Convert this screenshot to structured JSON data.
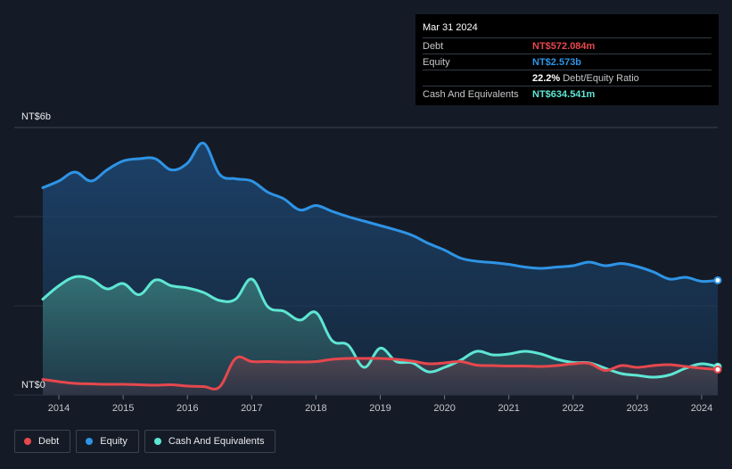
{
  "tooltip": {
    "date": "Mar 31 2024",
    "rows": [
      {
        "label": "Debt",
        "value": "NT$572.084m",
        "color": "#e5484d"
      },
      {
        "label": "Equity",
        "value": "NT$2.573b",
        "color": "#2e94e6"
      },
      {
        "label": "",
        "value": "22.2%",
        "suffix": "Debt/Equity Ratio",
        "color": "#ffffff"
      },
      {
        "label": "Cash And Equivalents",
        "value": "NT$634.541m",
        "color": "#5ee6d3"
      }
    ]
  },
  "legend": [
    {
      "label": "Debt",
      "color": "#e5484d"
    },
    {
      "label": "Equity",
      "color": "#2e94e6"
    },
    {
      "label": "Cash And Equivalents",
      "color": "#5ee6d3"
    }
  ],
  "chart_data": {
    "type": "area",
    "title": "",
    "xlabel": "",
    "ylabel": "",
    "y_unit": "NT$ billions",
    "ylim": [
      0,
      6
    ],
    "xlim": [
      2013.75,
      2024.25
    ],
    "grid": true,
    "y_tick_labels": [
      {
        "value": 6,
        "label": "NT$6b"
      },
      {
        "value": 0,
        "label": "NT$0"
      }
    ],
    "x_ticks": [
      {
        "value": 2014,
        "label": "2014"
      },
      {
        "value": 2015,
        "label": "2015"
      },
      {
        "value": 2016,
        "label": "2016"
      },
      {
        "value": 2017,
        "label": "2017"
      },
      {
        "value": 2018,
        "label": "2018"
      },
      {
        "value": 2019,
        "label": "2019"
      },
      {
        "value": 2020,
        "label": "2020"
      },
      {
        "value": 2021,
        "label": "2021"
      },
      {
        "value": 2022,
        "label": "2022"
      },
      {
        "value": 2023,
        "label": "2023"
      },
      {
        "value": 2024,
        "label": "2024"
      }
    ],
    "series": [
      {
        "name": "Equity",
        "color": "#2e94e6",
        "points": [
          [
            2013.75,
            4.65
          ],
          [
            2014.0,
            4.8
          ],
          [
            2014.25,
            5.0
          ],
          [
            2014.5,
            4.8
          ],
          [
            2014.75,
            5.05
          ],
          [
            2015.0,
            5.25
          ],
          [
            2015.25,
            5.3
          ],
          [
            2015.5,
            5.3
          ],
          [
            2015.75,
            5.05
          ],
          [
            2016.0,
            5.2
          ],
          [
            2016.25,
            5.65
          ],
          [
            2016.5,
            4.95
          ],
          [
            2016.75,
            4.85
          ],
          [
            2017.0,
            4.8
          ],
          [
            2017.25,
            4.55
          ],
          [
            2017.5,
            4.4
          ],
          [
            2017.75,
            4.15
          ],
          [
            2018.0,
            4.25
          ],
          [
            2018.25,
            4.12
          ],
          [
            2018.5,
            4.0
          ],
          [
            2018.75,
            3.9
          ],
          [
            2019.0,
            3.8
          ],
          [
            2019.25,
            3.7
          ],
          [
            2019.5,
            3.58
          ],
          [
            2019.75,
            3.4
          ],
          [
            2020.0,
            3.25
          ],
          [
            2020.25,
            3.07
          ],
          [
            2020.5,
            3.0
          ],
          [
            2020.75,
            2.97
          ],
          [
            2021.0,
            2.93
          ],
          [
            2021.25,
            2.87
          ],
          [
            2021.5,
            2.84
          ],
          [
            2021.75,
            2.87
          ],
          [
            2022.0,
            2.9
          ],
          [
            2022.25,
            2.98
          ],
          [
            2022.5,
            2.9
          ],
          [
            2022.75,
            2.95
          ],
          [
            2023.0,
            2.88
          ],
          [
            2023.25,
            2.76
          ],
          [
            2023.5,
            2.6
          ],
          [
            2023.75,
            2.64
          ],
          [
            2024.0,
            2.55
          ],
          [
            2024.25,
            2.573
          ]
        ]
      },
      {
        "name": "Cash And Equivalents",
        "color": "#5ee6d3",
        "points": [
          [
            2013.75,
            2.15
          ],
          [
            2014.0,
            2.45
          ],
          [
            2014.25,
            2.65
          ],
          [
            2014.5,
            2.6
          ],
          [
            2014.75,
            2.38
          ],
          [
            2015.0,
            2.5
          ],
          [
            2015.25,
            2.25
          ],
          [
            2015.5,
            2.58
          ],
          [
            2015.75,
            2.45
          ],
          [
            2016.0,
            2.4
          ],
          [
            2016.25,
            2.3
          ],
          [
            2016.5,
            2.12
          ],
          [
            2016.75,
            2.15
          ],
          [
            2017.0,
            2.6
          ],
          [
            2017.25,
            1.98
          ],
          [
            2017.5,
            1.88
          ],
          [
            2017.75,
            1.68
          ],
          [
            2018.0,
            1.85
          ],
          [
            2018.25,
            1.22
          ],
          [
            2018.5,
            1.12
          ],
          [
            2018.75,
            0.62
          ],
          [
            2019.0,
            1.05
          ],
          [
            2019.25,
            0.75
          ],
          [
            2019.5,
            0.72
          ],
          [
            2019.75,
            0.52
          ],
          [
            2020.0,
            0.62
          ],
          [
            2020.25,
            0.78
          ],
          [
            2020.5,
            0.98
          ],
          [
            2020.75,
            0.9
          ],
          [
            2021.0,
            0.92
          ],
          [
            2021.25,
            0.98
          ],
          [
            2021.5,
            0.92
          ],
          [
            2021.75,
            0.8
          ],
          [
            2022.0,
            0.73
          ],
          [
            2022.25,
            0.72
          ],
          [
            2022.5,
            0.6
          ],
          [
            2022.75,
            0.48
          ],
          [
            2023.0,
            0.44
          ],
          [
            2023.25,
            0.4
          ],
          [
            2023.5,
            0.45
          ],
          [
            2023.75,
            0.6
          ],
          [
            2024.0,
            0.7
          ],
          [
            2024.25,
            0.635
          ]
        ]
      },
      {
        "name": "Debt",
        "color": "#e5484d",
        "points": [
          [
            2013.75,
            0.35
          ],
          [
            2014.0,
            0.3
          ],
          [
            2014.25,
            0.26
          ],
          [
            2014.5,
            0.25
          ],
          [
            2014.75,
            0.24
          ],
          [
            2015.0,
            0.24
          ],
          [
            2015.25,
            0.23
          ],
          [
            2015.5,
            0.22
          ],
          [
            2015.75,
            0.23
          ],
          [
            2016.0,
            0.2
          ],
          [
            2016.25,
            0.19
          ],
          [
            2016.5,
            0.18
          ],
          [
            2016.75,
            0.82
          ],
          [
            2017.0,
            0.75
          ],
          [
            2017.25,
            0.75
          ],
          [
            2017.5,
            0.74
          ],
          [
            2017.75,
            0.74
          ],
          [
            2018.0,
            0.75
          ],
          [
            2018.25,
            0.8
          ],
          [
            2018.5,
            0.82
          ],
          [
            2018.75,
            0.82
          ],
          [
            2019.0,
            0.82
          ],
          [
            2019.25,
            0.8
          ],
          [
            2019.5,
            0.76
          ],
          [
            2019.75,
            0.7
          ],
          [
            2020.0,
            0.72
          ],
          [
            2020.25,
            0.75
          ],
          [
            2020.5,
            0.67
          ],
          [
            2020.75,
            0.66
          ],
          [
            2021.0,
            0.65
          ],
          [
            2021.25,
            0.65
          ],
          [
            2021.5,
            0.64
          ],
          [
            2021.75,
            0.66
          ],
          [
            2022.0,
            0.7
          ],
          [
            2022.25,
            0.71
          ],
          [
            2022.5,
            0.55
          ],
          [
            2022.75,
            0.66
          ],
          [
            2023.0,
            0.62
          ],
          [
            2023.25,
            0.66
          ],
          [
            2023.5,
            0.68
          ],
          [
            2023.75,
            0.64
          ],
          [
            2024.0,
            0.6
          ],
          [
            2024.25,
            0.572
          ]
        ]
      }
    ]
  }
}
